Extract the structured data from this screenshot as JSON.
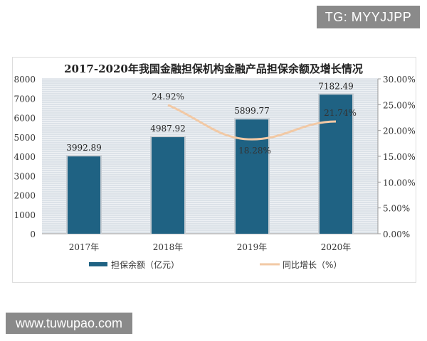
{
  "watermarks": {
    "top_right": "TG: MYYJJPP",
    "bottom_left": "www.tuwupao.com"
  },
  "chart_data": {
    "type": "bar+line",
    "title": "2017-2020年我国金融担保机构金融产品担保余额及增长情况",
    "categories": [
      "2017年",
      "2018年",
      "2019年",
      "2020年"
    ],
    "series": [
      {
        "name": "担保余额（亿元）",
        "type": "bar",
        "axis": "left",
        "values": [
          3992.89,
          4987.92,
          5899.77,
          7182.49
        ],
        "labels": [
          "3992.89",
          "4987.92",
          "5899.77",
          "7182.49"
        ],
        "color": "#1f6283"
      },
      {
        "name": "同比增长（%）",
        "type": "line",
        "axis": "right",
        "values": [
          null,
          24.92,
          18.28,
          21.74
        ],
        "labels": [
          "",
          "24.92%",
          "18.28%",
          "21.74%"
        ],
        "color": "#f2c9a5"
      }
    ],
    "y_left": {
      "range": [
        0,
        8000
      ],
      "ticks": [
        "0",
        "1000",
        "2000",
        "3000",
        "4000",
        "5000",
        "6000",
        "7000",
        "8000"
      ]
    },
    "y_right": {
      "range": [
        0,
        30
      ],
      "ticks": [
        "0.00%",
        "5.00%",
        "10.00%",
        "15.00%",
        "20.00%",
        "25.00%",
        "30.00%"
      ]
    },
    "grid": true,
    "legend": "bottom"
  }
}
